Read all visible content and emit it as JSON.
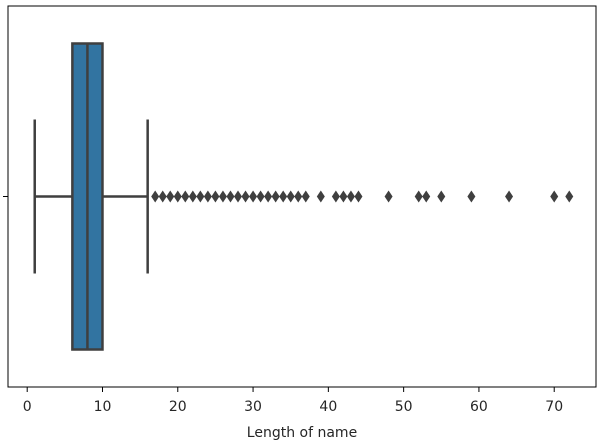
{
  "chart_data": {
    "type": "box",
    "x_label": "Length of name",
    "categories": [
      null
    ],
    "stats": {
      "whislo": 1,
      "q1": 6,
      "med": 8,
      "q3": 10,
      "whishi": 16
    },
    "outliers": [
      17,
      18,
      19,
      20,
      21,
      22,
      23,
      24,
      25,
      26,
      27,
      28,
      29,
      30,
      31,
      32,
      33,
      34,
      35,
      36,
      37,
      39,
      41,
      42,
      43,
      44,
      48,
      52,
      53,
      55,
      59,
      64,
      70,
      72
    ],
    "color": "#3274a1",
    "line_color": "#3f3f3f",
    "xlim": [
      -2.55,
      75.55
    ],
    "xticks": [
      0,
      10,
      20,
      30,
      40,
      50,
      60,
      70
    ]
  }
}
